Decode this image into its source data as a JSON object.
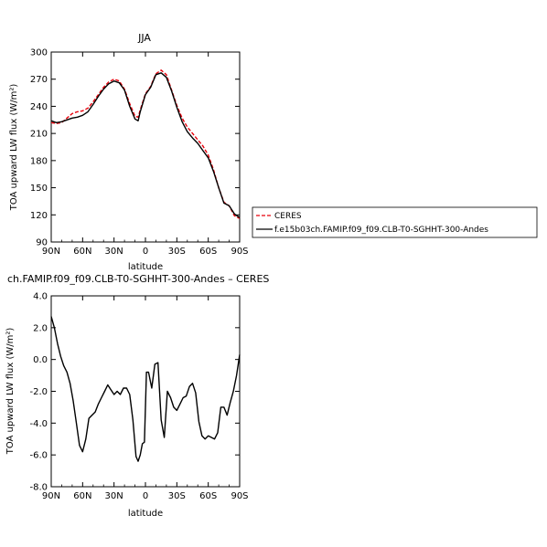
{
  "chart_data": [
    {
      "type": "line",
      "title": "JJA",
      "xlabel": "latitude",
      "ylabel": "TOA upward LW flux (W/m²)",
      "xlim": [
        90,
        -90
      ],
      "ylim": [
        90,
        300
      ],
      "x_ticks": [
        90,
        60,
        30,
        0,
        -30,
        -60,
        -90
      ],
      "x_tick_labels": [
        "90N",
        "60N",
        "30N",
        "0",
        "30S",
        "60S",
        "90S"
      ],
      "y_ticks": [
        90,
        120,
        150,
        180,
        210,
        240,
        270,
        300
      ],
      "y_tick_labels": [
        "90",
        "120",
        "150",
        "180",
        "210",
        "240",
        "270",
        "300"
      ],
      "legend": "right-bottom-outside",
      "series": [
        {
          "name": "CERES",
          "color": "#e8000b",
          "dash": "dashed",
          "x": [
            90,
            85,
            80,
            75,
            70,
            65,
            60,
            55,
            50,
            45,
            40,
            35,
            30,
            25,
            20,
            15,
            10,
            7,
            5,
            0,
            -5,
            -10,
            -15,
            -20,
            -25,
            -30,
            -35,
            -40,
            -45,
            -50,
            -55,
            -60,
            -65,
            -70,
            -75,
            -80,
            -85,
            -90
          ],
          "y": [
            222,
            221,
            222,
            227,
            232,
            234,
            235,
            238,
            245,
            253,
            261,
            267,
            270,
            268,
            259,
            243,
            229,
            228,
            236,
            254,
            262,
            276,
            280,
            275,
            258,
            241,
            227,
            217,
            210,
            203,
            196,
            186,
            170,
            150,
            134,
            130,
            119,
            116
          ]
        },
        {
          "name": "f.e15b03ch.FAMIP.f09_f09.CLB-T0-SGHHT-300-Andes",
          "color": "#000000",
          "dash": "solid",
          "x": [
            90,
            85,
            80,
            75,
            70,
            65,
            60,
            55,
            50,
            45,
            40,
            35,
            30,
            25,
            20,
            15,
            10,
            7,
            5,
            0,
            -5,
            -10,
            -15,
            -20,
            -25,
            -30,
            -35,
            -40,
            -45,
            -50,
            -55,
            -60,
            -65,
            -70,
            -75,
            -80,
            -85,
            -90
          ],
          "y": [
            224,
            222,
            223,
            225,
            227,
            228,
            230,
            234,
            242,
            251,
            259,
            265,
            268,
            266,
            258,
            240,
            226,
            224,
            234,
            253,
            261,
            275,
            277,
            272,
            257,
            239,
            223,
            212,
            205,
            199,
            191,
            183,
            168,
            150,
            133,
            130,
            121,
            117
          ]
        }
      ]
    },
    {
      "type": "line",
      "title": "ch.FAMIP.f09_f09.CLB-T0-SGHHT-300-Andes – CERES",
      "xlabel": "latitude",
      "ylabel": "TOA upward LW flux (W/m²)",
      "xlim": [
        90,
        -90
      ],
      "ylim": [
        -8,
        4
      ],
      "x_ticks": [
        90,
        60,
        30,
        0,
        -30,
        -60,
        -90
      ],
      "x_tick_labels": [
        "90N",
        "60N",
        "30N",
        "0",
        "30S",
        "60S",
        "90S"
      ],
      "y_ticks": [
        -8,
        -6,
        -4,
        -2,
        0,
        2,
        4
      ],
      "y_tick_labels": [
        "-8.0",
        "-6.0",
        "-4.0",
        "-2.0",
        "0.0",
        "2.0",
        "4.0"
      ],
      "series": [
        {
          "color": "#000000",
          "x": [
            90,
            87,
            84,
            81,
            78,
            75,
            72,
            69,
            66,
            63,
            60,
            57,
            54,
            51,
            48,
            45,
            42,
            39,
            36,
            33,
            30,
            27,
            24,
            21,
            18,
            15,
            12,
            9,
            7,
            5,
            3,
            1,
            -1,
            -3,
            -6,
            -9,
            -12,
            -15,
            -18,
            -21,
            -24,
            -27,
            -30,
            -33,
            -36,
            -39,
            -42,
            -45,
            -48,
            -51,
            -54,
            -57,
            -60,
            -63,
            -66,
            -69,
            -72,
            -75,
            -78,
            -81,
            -84,
            -87,
            -90
          ],
          "y": [
            2.7,
            2.0,
            1.0,
            0.2,
            -0.4,
            -0.8,
            -1.5,
            -2.6,
            -4.0,
            -5.4,
            -5.8,
            -5.0,
            -3.7,
            -3.5,
            -3.3,
            -2.8,
            -2.4,
            -2.0,
            -1.6,
            -1.9,
            -2.2,
            -2.0,
            -2.2,
            -1.8,
            -1.8,
            -2.2,
            -3.8,
            -6.1,
            -6.4,
            -6.0,
            -5.3,
            -5.2,
            -0.8,
            -0.8,
            -1.8,
            -0.3,
            -0.2,
            -3.8,
            -4.9,
            -2.0,
            -2.4,
            -3.0,
            -3.2,
            -2.8,
            -2.4,
            -2.3,
            -1.7,
            -1.5,
            -2.1,
            -3.9,
            -4.8,
            -5.0,
            -4.8,
            -4.9,
            -5.0,
            -4.6,
            -3.0,
            -3.0,
            -3.5,
            -2.7,
            -2.0,
            -1.0,
            0.3
          ]
        }
      ]
    }
  ]
}
